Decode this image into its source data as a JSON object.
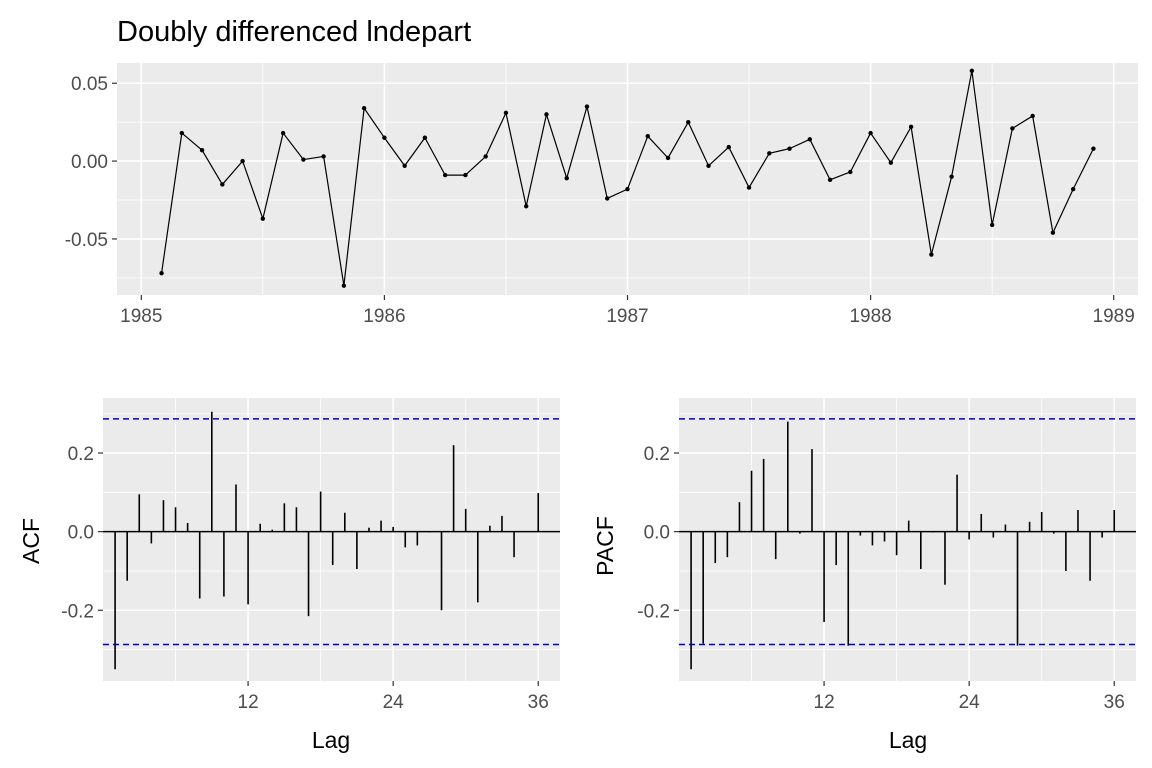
{
  "chart_data": [
    {
      "type": "line",
      "title": "Doubly differenced lndepart",
      "xlabel": "",
      "ylabel": "",
      "x_start": 1985.0833,
      "x_step": 0.0833333,
      "y": [
        -0.072,
        0.018,
        0.007,
        -0.015,
        0.0,
        -0.037,
        0.018,
        0.001,
        0.003,
        -0.08,
        0.034,
        0.015,
        -0.003,
        0.015,
        -0.009,
        -0.009,
        0.003,
        0.031,
        -0.029,
        0.03,
        -0.011,
        0.035,
        -0.024,
        -0.018,
        0.016,
        0.002,
        0.025,
        -0.003,
        0.009,
        -0.017,
        0.005,
        0.008,
        0.014,
        -0.012,
        -0.007,
        0.018,
        -0.001,
        0.022,
        -0.06,
        -0.01,
        0.058,
        -0.041,
        0.021,
        0.029,
        -0.046,
        -0.018,
        0.008
      ],
      "xlim": [
        1984.9,
        1989.1
      ],
      "ylim": [
        -0.086,
        0.063
      ],
      "x_ticks": [
        {
          "value": 1985,
          "label": "1985"
        },
        {
          "value": 1986,
          "label": "1986"
        },
        {
          "value": 1987,
          "label": "1987"
        },
        {
          "value": 1988,
          "label": "1988"
        },
        {
          "value": 1989,
          "label": "1989"
        }
      ],
      "y_ticks": [
        {
          "value": 0.05,
          "label": "0.05"
        },
        {
          "value": 0.0,
          "label": "0.00"
        },
        {
          "value": -0.05,
          "label": "-0.05"
        }
      ],
      "grid": true,
      "color": "#000000"
    },
    {
      "type": "bar",
      "xlabel": "Lag",
      "ylabel": "ACF",
      "lags": [
        1,
        2,
        3,
        4,
        5,
        6,
        7,
        8,
        9,
        10,
        11,
        12,
        13,
        14,
        15,
        16,
        17,
        18,
        19,
        20,
        21,
        22,
        23,
        24,
        25,
        26,
        27,
        28,
        29,
        30,
        31,
        32,
        33,
        34,
        35,
        36
      ],
      "values": [
        -0.35,
        -0.125,
        0.095,
        -0.03,
        0.08,
        0.062,
        0.022,
        -0.17,
        0.305,
        -0.165,
        0.12,
        -0.185,
        0.02,
        0.005,
        0.072,
        0.062,
        -0.215,
        0.102,
        -0.085,
        0.048,
        -0.095,
        0.01,
        0.028,
        0.012,
        -0.04,
        -0.035,
        -0.002,
        -0.2,
        0.22,
        0.058,
        -0.18,
        0.015,
        0.04,
        -0.065,
        0.0,
        0.098
      ],
      "ci": 0.287,
      "xlim": [
        0.0,
        37.8
      ],
      "ylim": [
        -0.38,
        0.34
      ],
      "x_ticks": [
        {
          "value": 12,
          "label": "12"
        },
        {
          "value": 24,
          "label": "24"
        },
        {
          "value": 36,
          "label": "36"
        }
      ],
      "y_ticks": [
        {
          "value": 0.2,
          "label": "0.2"
        },
        {
          "value": 0.0,
          "label": "0.0"
        },
        {
          "value": -0.2,
          "label": "-0.2"
        }
      ],
      "grid": true,
      "ci_color": "#0000cc",
      "bar_color": "#000000"
    },
    {
      "type": "bar",
      "xlabel": "Lag",
      "ylabel": "PACF",
      "lags": [
        1,
        2,
        3,
        4,
        5,
        6,
        7,
        8,
        9,
        10,
        11,
        12,
        13,
        14,
        15,
        16,
        17,
        18,
        19,
        20,
        21,
        22,
        23,
        24,
        25,
        26,
        27,
        28,
        29,
        30,
        31,
        32,
        33,
        34,
        35,
        36
      ],
      "values": [
        -0.35,
        -0.285,
        -0.08,
        -0.065,
        0.075,
        0.155,
        0.185,
        -0.07,
        0.28,
        -0.005,
        0.21,
        -0.23,
        -0.085,
        -0.29,
        -0.01,
        -0.035,
        -0.025,
        -0.06,
        0.028,
        -0.095,
        -0.002,
        -0.135,
        0.145,
        -0.02,
        0.045,
        -0.015,
        0.018,
        -0.29,
        0.025,
        0.05,
        -0.005,
        -0.1,
        0.055,
        -0.125,
        -0.015,
        0.055
      ],
      "ci": 0.287,
      "xlim": [
        0.0,
        37.8
      ],
      "ylim": [
        -0.38,
        0.34
      ],
      "x_ticks": [
        {
          "value": 12,
          "label": "12"
        },
        {
          "value": 24,
          "label": "24"
        },
        {
          "value": 36,
          "label": "36"
        }
      ],
      "y_ticks": [
        {
          "value": 0.2,
          "label": "0.2"
        },
        {
          "value": 0.0,
          "label": "0.0"
        },
        {
          "value": -0.2,
          "label": "-0.2"
        }
      ],
      "grid": true,
      "ci_color": "#0000cc",
      "bar_color": "#000000"
    }
  ],
  "colors": {
    "panel_background": "#ebebeb",
    "grid_line": "#ffffff",
    "tick_text": "#4d4d4d",
    "tick_mark": "#333333"
  }
}
